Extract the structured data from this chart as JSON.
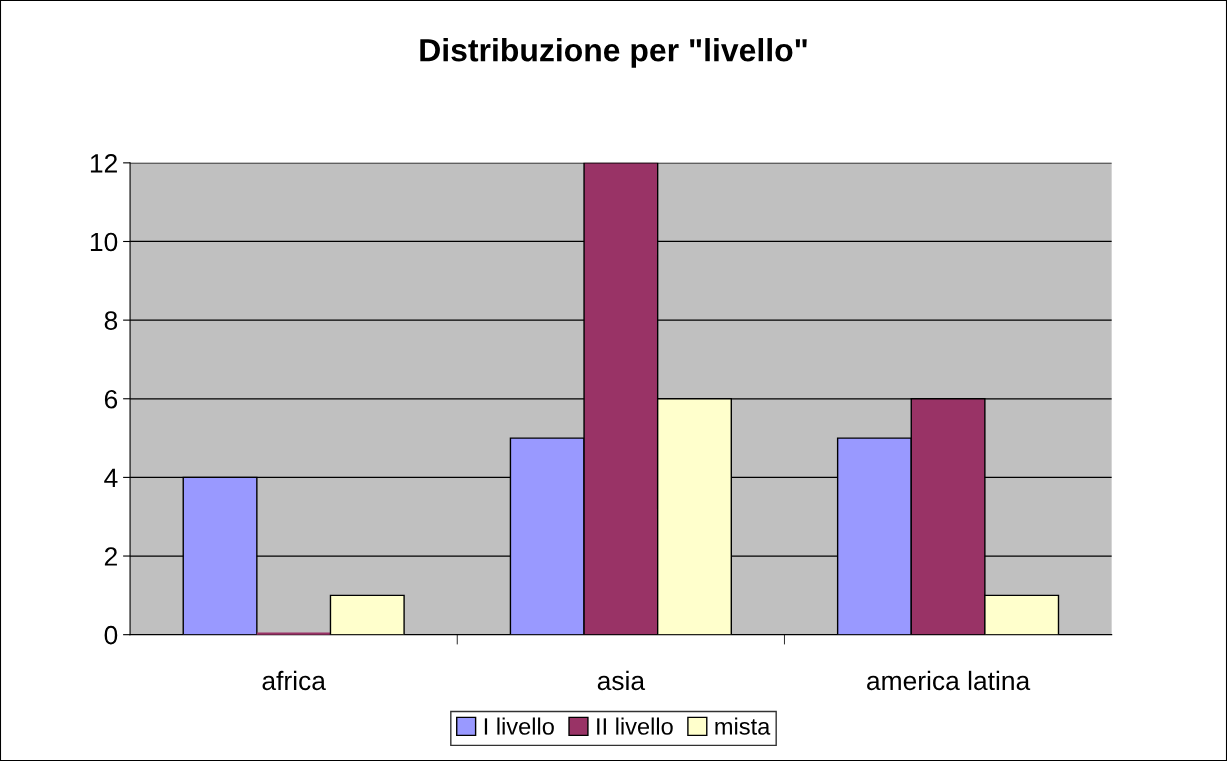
{
  "chart_data": {
    "type": "bar",
    "title": "Distribuzione per \"livello\"",
    "categories": [
      "africa",
      "asia",
      "america latina"
    ],
    "series": [
      {
        "name": "I livello",
        "color": "#9999ff",
        "values": [
          4,
          5,
          5
        ]
      },
      {
        "name": "II livello",
        "color": "#993366",
        "values": [
          0,
          12,
          6
        ]
      },
      {
        "name": "mista",
        "color": "#ffffcc",
        "values": [
          1,
          6,
          1
        ]
      }
    ],
    "ylim": [
      0,
      12
    ],
    "yticks": [
      0,
      2,
      4,
      6,
      8,
      10,
      12
    ],
    "grid": "y",
    "legend": "bottom"
  }
}
